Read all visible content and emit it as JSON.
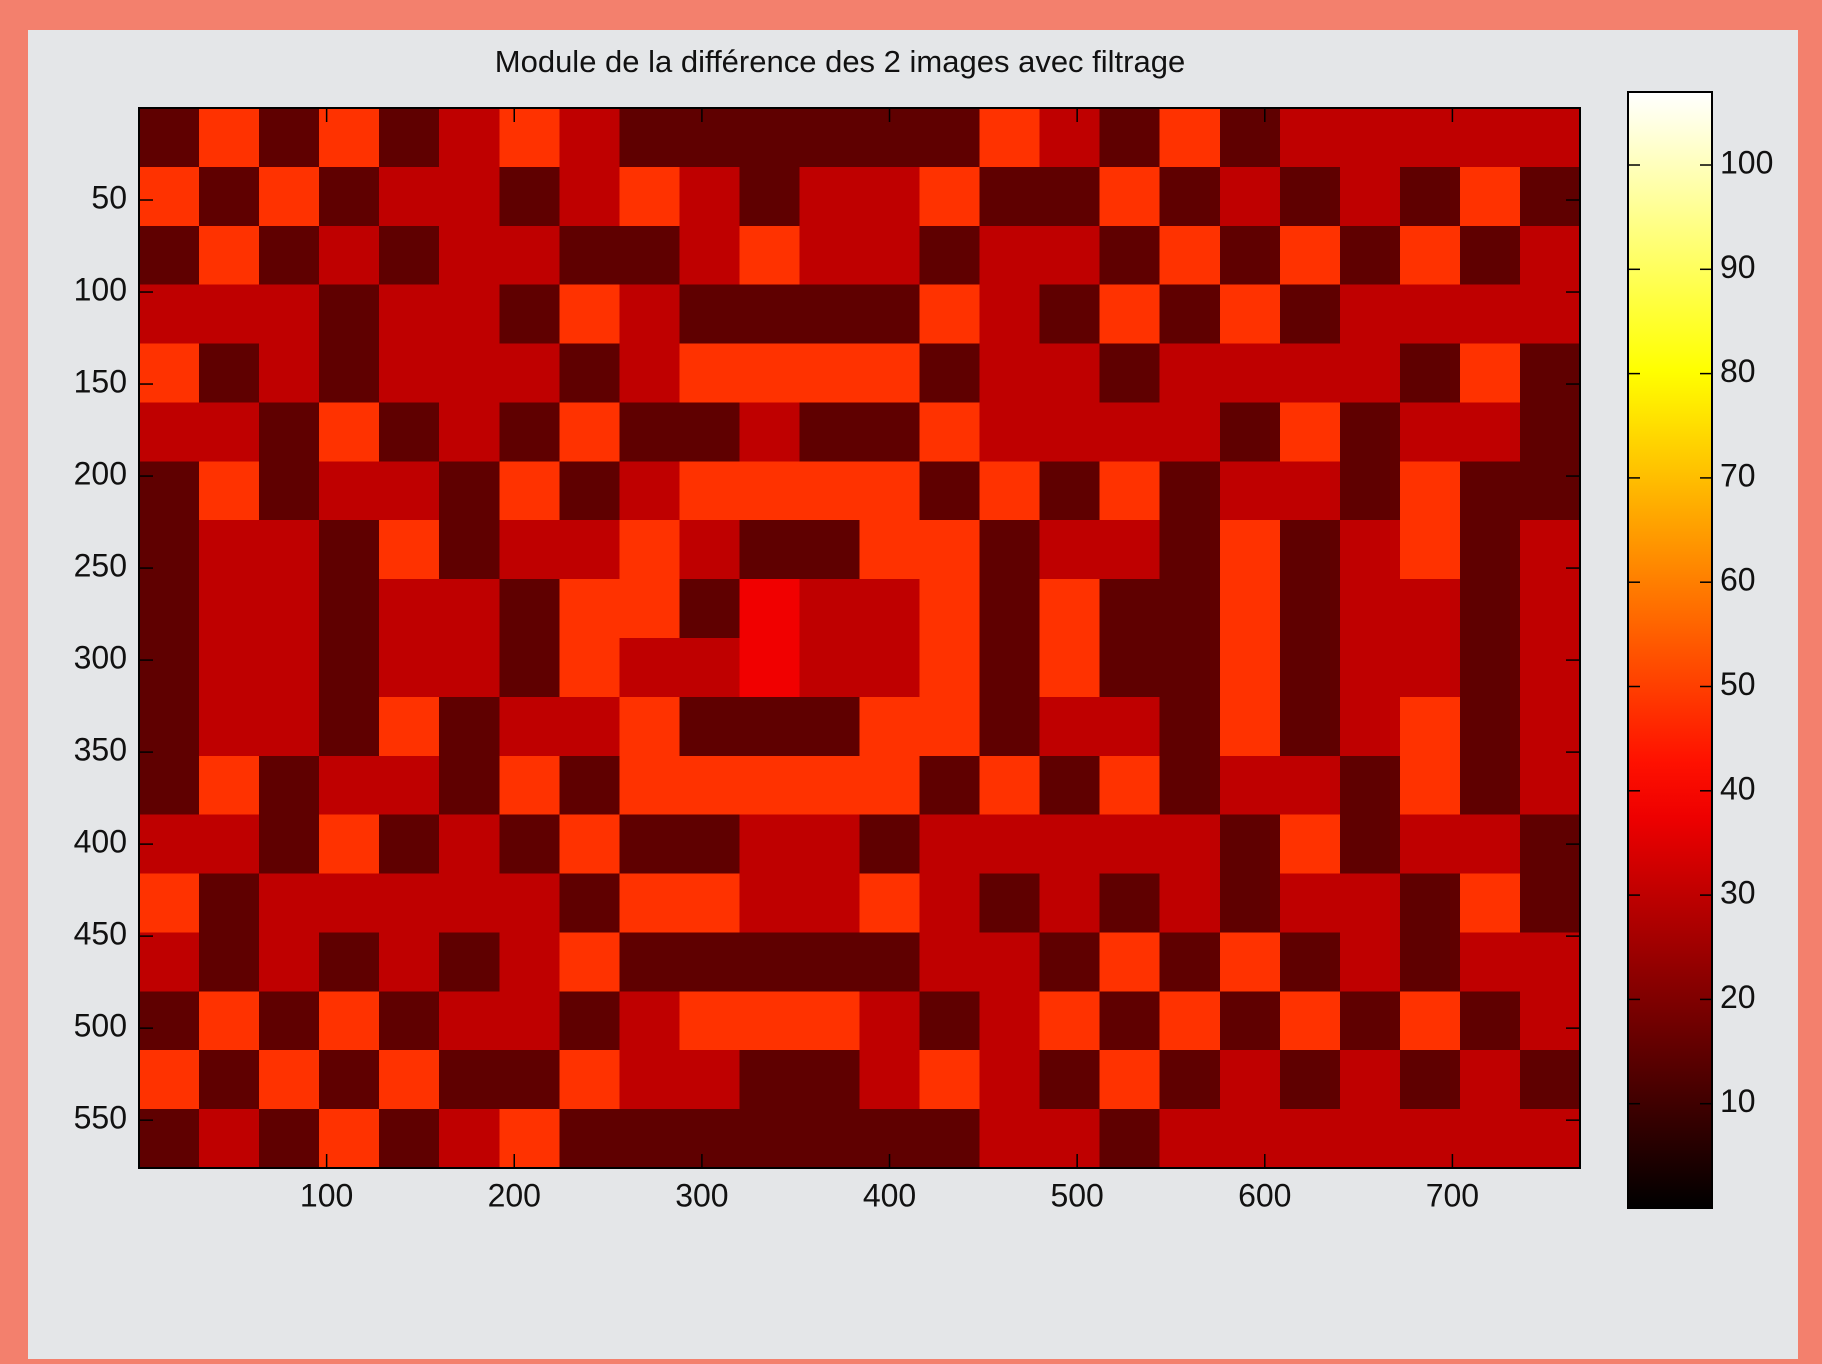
{
  "chart_data": {
    "type": "heatmap",
    "title": "Module de la différence des 2 images avec filtrage",
    "x": [
      16,
      48,
      80,
      112,
      144,
      176,
      208,
      240,
      272,
      304,
      336,
      368,
      400,
      432,
      464,
      496,
      528,
      560,
      592,
      624,
      656,
      688,
      720,
      752
    ],
    "y": [
      16,
      48,
      80,
      112,
      144,
      176,
      208,
      240,
      272,
      304,
      336,
      368,
      400,
      432,
      464,
      496,
      528,
      560
    ],
    "z": [
      [
        15,
        48,
        15,
        48,
        15,
        30,
        48,
        30,
        15,
        15,
        15,
        15,
        15,
        15,
        48,
        30,
        15,
        48,
        15,
        30,
        30,
        30,
        30,
        30
      ],
      [
        48,
        15,
        48,
        15,
        30,
        30,
        15,
        30,
        48,
        30,
        15,
        30,
        30,
        48,
        15,
        15,
        48,
        15,
        30,
        15,
        30,
        15,
        48,
        15
      ],
      [
        15,
        48,
        15,
        30,
        15,
        30,
        30,
        15,
        15,
        30,
        48,
        30,
        30,
        15,
        30,
        30,
        15,
        48,
        15,
        48,
        15,
        48,
        15,
        30
      ],
      [
        30,
        30,
        30,
        15,
        30,
        30,
        15,
        48,
        30,
        15,
        15,
        15,
        15,
        48,
        30,
        15,
        48,
        15,
        48,
        15,
        30,
        30,
        30,
        30
      ],
      [
        48,
        15,
        30,
        15,
        30,
        30,
        30,
        15,
        30,
        48,
        48,
        48,
        48,
        15,
        30,
        30,
        15,
        30,
        30,
        30,
        30,
        15,
        48,
        15
      ],
      [
        30,
        30,
        15,
        48,
        15,
        30,
        15,
        48,
        15,
        15,
        30,
        15,
        15,
        48,
        30,
        30,
        30,
        30,
        15,
        48,
        15,
        30,
        30,
        15
      ],
      [
        15,
        48,
        15,
        30,
        30,
        15,
        48,
        15,
        30,
        48,
        48,
        48,
        48,
        15,
        48,
        15,
        48,
        15,
        30,
        30,
        15,
        48,
        15,
        15
      ],
      [
        15,
        30,
        30,
        15,
        48,
        15,
        30,
        30,
        48,
        30,
        15,
        15,
        48,
        48,
        15,
        30,
        30,
        15,
        48,
        15,
        30,
        48,
        15,
        30
      ],
      [
        15,
        30,
        30,
        15,
        30,
        30,
        15,
        48,
        48,
        15,
        38,
        30,
        30,
        48,
        15,
        48,
        15,
        15,
        48,
        15,
        30,
        30,
        15,
        30
      ],
      [
        15,
        30,
        30,
        15,
        30,
        30,
        15,
        48,
        30,
        30,
        38,
        30,
        30,
        48,
        15,
        48,
        15,
        15,
        48,
        15,
        30,
        30,
        15,
        30
      ],
      [
        15,
        30,
        30,
        15,
        48,
        15,
        30,
        30,
        48,
        15,
        15,
        15,
        48,
        48,
        15,
        30,
        30,
        15,
        48,
        15,
        30,
        48,
        15,
        30
      ],
      [
        15,
        48,
        15,
        30,
        30,
        15,
        48,
        15,
        48,
        48,
        48,
        48,
        48,
        15,
        48,
        15,
        48,
        15,
        30,
        30,
        15,
        48,
        15,
        30
      ],
      [
        30,
        30,
        15,
        48,
        15,
        30,
        15,
        48,
        15,
        15,
        30,
        30,
        15,
        30,
        30,
        30,
        30,
        30,
        15,
        48,
        15,
        30,
        30,
        15
      ],
      [
        48,
        15,
        30,
        30,
        30,
        30,
        30,
        15,
        48,
        48,
        30,
        30,
        48,
        30,
        15,
        30,
        15,
        30,
        15,
        30,
        30,
        15,
        48,
        15
      ],
      [
        30,
        15,
        30,
        15,
        30,
        15,
        30,
        48,
        15,
        15,
        15,
        15,
        15,
        30,
        30,
        15,
        48,
        15,
        48,
        15,
        30,
        15,
        30,
        30
      ],
      [
        15,
        48,
        15,
        48,
        15,
        30,
        30,
        15,
        30,
        48,
        48,
        48,
        30,
        15,
        30,
        48,
        15,
        48,
        15,
        48,
        15,
        48,
        15,
        30
      ],
      [
        48,
        15,
        48,
        15,
        48,
        15,
        15,
        48,
        30,
        30,
        15,
        15,
        30,
        48,
        30,
        15,
        48,
        15,
        30,
        15,
        30,
        15,
        30,
        15
      ],
      [
        15,
        30,
        15,
        48,
        15,
        30,
        48,
        15,
        15,
        15,
        15,
        15,
        15,
        15,
        30,
        30,
        15,
        30,
        30,
        30,
        30,
        30,
        30,
        30
      ]
    ],
    "xlim": [
      0,
      768
    ],
    "ylim": [
      0,
      576
    ],
    "y_reversed": true,
    "xticks": [
      100,
      200,
      300,
      400,
      500,
      600,
      700
    ],
    "yticks": [
      50,
      100,
      150,
      200,
      250,
      300,
      350,
      400,
      450,
      500,
      550
    ],
    "colormap": "hot",
    "zlim": [
      0,
      107
    ],
    "zticks": [
      10,
      20,
      30,
      40,
      50,
      60,
      70,
      80,
      90,
      100
    ]
  }
}
